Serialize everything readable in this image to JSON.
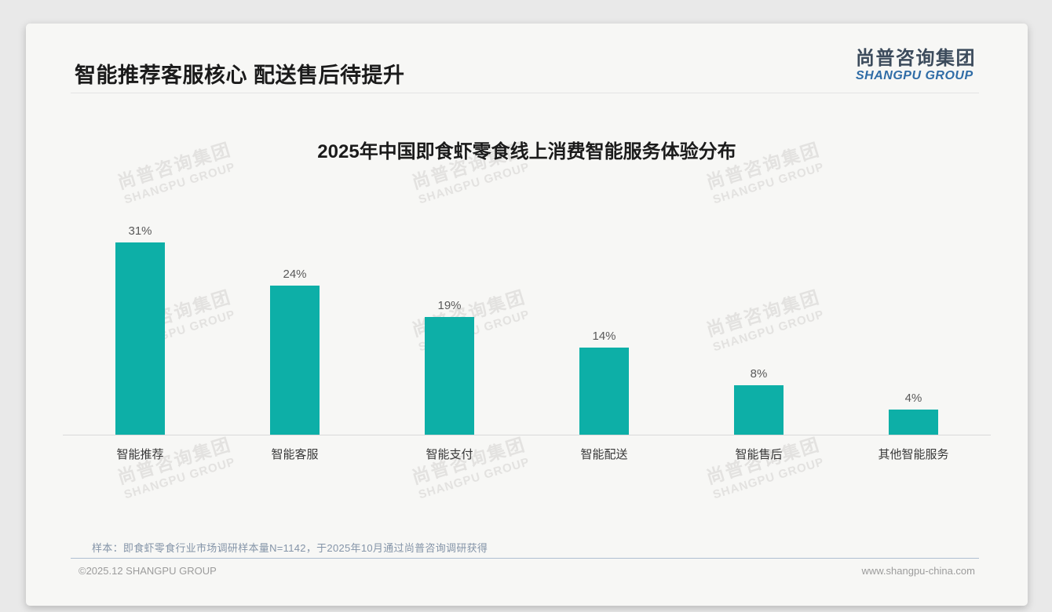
{
  "header": {
    "title": "智能推荐客服核心 配送售后待提升",
    "logo_cn": "尚普咨询集团",
    "logo_en": "SHANGPU GROUP"
  },
  "chart_data": {
    "type": "bar",
    "title": "2025年中国即食虾零食线上消费智能服务体验分布",
    "categories": [
      "智能推荐",
      "智能客服",
      "智能支付",
      "智能配送",
      "智能售后",
      "其他智能服务"
    ],
    "values": [
      31,
      24,
      19,
      14,
      8,
      4
    ],
    "unit": "%",
    "value_labels": [
      "31%",
      "24%",
      "19%",
      "14%",
      "8%",
      "4%"
    ],
    "xlabel": "",
    "ylabel": "",
    "ylim": [
      0,
      35
    ],
    "grid": false,
    "legend": false,
    "bar_color": "#0DAFA7",
    "axis_color": "#D9D9D9"
  },
  "note": {
    "text": "样本：即食虾零食行业市场调研样本量N=1142，于2025年10月通过尚普咨询调研获得"
  },
  "footer": {
    "copyright": "©2025.12 SHANGPU GROUP",
    "website": "www.shangpu-china.com"
  },
  "watermark": {
    "line1": "尚普咨询集团",
    "line2": "SHANGPU GROUP"
  },
  "colors": {
    "bar_teal": "#0DAFA7",
    "logo_blue": "#2F6CA6",
    "logo_dark": "#3C4B5C",
    "note_gray_blue": "#8494A8"
  }
}
